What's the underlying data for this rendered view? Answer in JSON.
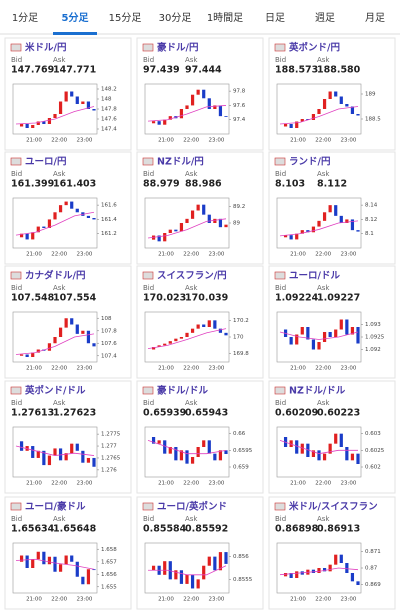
{
  "tabs": [
    "1分足",
    "5分足",
    "15分足",
    "30分足",
    "1時間足",
    "日足",
    "週足",
    "月足"
  ],
  "selected_tab": 1,
  "labels": {
    "bid": "Bid",
    "ask": "Ask"
  },
  "time_labels": [
    "21:00",
    "22:00",
    "23:00"
  ],
  "cards": [
    {
      "name": "米ドル/円",
      "bid": 147.769,
      "ask": 147.771,
      "ylim": [
        147.3,
        148.3
      ],
      "yticks": [
        148.2,
        148,
        147.8,
        147.6,
        147.4
      ],
      "closes": [
        147.45,
        147.5,
        147.42,
        147.48,
        147.55,
        147.5,
        147.62,
        147.7,
        147.95,
        148.15,
        148.05,
        147.9,
        147.95,
        147.8,
        147.77
      ],
      "ma": [
        147.5,
        147.52,
        147.6,
        147.75,
        147.85
      ]
    },
    {
      "name": "豪ドル/円",
      "bid": 97.439,
      "ask": 97.444,
      "ylim": [
        97.2,
        97.9
      ],
      "yticks": [
        97.8,
        97.6,
        97.4
      ],
      "closes": [
        97.35,
        97.38,
        97.33,
        97.4,
        97.45,
        97.42,
        97.55,
        97.6,
        97.75,
        97.82,
        97.7,
        97.55,
        97.6,
        97.45,
        97.44
      ],
      "ma": [
        97.38,
        97.4,
        97.48,
        97.58,
        97.6
      ]
    },
    {
      "name": "英ポンド/円",
      "bid": 188.573,
      "ask": {
        "value": 188.58,
        "label": "188.580"
      },
      "ylim": [
        188.2,
        189.2
      ],
      "yticks": [
        189,
        188.5
      ],
      "closes": [
        188.35,
        188.4,
        188.32,
        188.45,
        188.5,
        188.48,
        188.6,
        188.7,
        188.9,
        189.05,
        188.95,
        188.8,
        188.75,
        188.6,
        188.57
      ],
      "ma": [
        188.4,
        188.43,
        188.55,
        188.7,
        188.75
      ]
    },
    {
      "name": "ユーロ/円",
      "bid": 161.399,
      "ask": 161.403,
      "ylim": [
        161.0,
        161.7
      ],
      "yticks": [
        161.6,
        161.4,
        161.2
      ],
      "closes": [
        161.15,
        161.2,
        161.12,
        161.22,
        161.3,
        161.28,
        161.4,
        161.5,
        161.6,
        161.65,
        161.55,
        161.5,
        161.45,
        161.42,
        161.4
      ],
      "ma": [
        161.18,
        161.22,
        161.32,
        161.45,
        161.5
      ]
    },
    {
      "name": "NZドル/円",
      "bid": 88.979,
      "ask": 88.986,
      "ylim": [
        88.7,
        89.3
      ],
      "yticks": [
        89.2,
        89
      ],
      "closes": [
        88.8,
        88.85,
        88.78,
        88.88,
        88.92,
        88.9,
        89.0,
        89.05,
        89.15,
        89.22,
        89.1,
        89.0,
        89.05,
        88.95,
        88.98
      ],
      "ma": [
        88.82,
        88.85,
        88.92,
        89.02,
        89.05
      ]
    },
    {
      "name": "ランド/円",
      "bid": 8.103,
      "ask": 8.112,
      "ylim": [
        8.08,
        8.15
      ],
      "yticks": [
        8.14,
        8.12,
        8.1
      ],
      "closes": [
        8.095,
        8.098,
        8.092,
        8.1,
        8.105,
        8.102,
        8.11,
        8.118,
        8.13,
        8.14,
        8.125,
        8.115,
        8.12,
        8.105,
        8.103
      ],
      "ma": [
        8.097,
        8.1,
        8.106,
        8.115,
        8.118
      ]
    },
    {
      "name": "カナダドル/円",
      "bid": 107.548,
      "ask": 107.554,
      "ylim": [
        107.3,
        108.1
      ],
      "yticks": [
        108,
        107.8,
        107.6,
        107.4
      ],
      "closes": [
        107.4,
        107.42,
        107.38,
        107.45,
        107.5,
        107.48,
        107.6,
        107.7,
        107.85,
        108.0,
        107.9,
        107.75,
        107.8,
        107.6,
        107.55
      ],
      "ma": [
        107.42,
        107.45,
        107.55,
        107.7,
        107.75
      ]
    },
    {
      "name": "スイスフラン/円",
      "bid": 170.023,
      "ask": 170.039,
      "ylim": [
        169.7,
        170.3
      ],
      "yticks": [
        170.2,
        170,
        169.8
      ],
      "closes": [
        169.85,
        169.88,
        169.9,
        169.92,
        169.95,
        169.98,
        170.0,
        170.05,
        170.1,
        170.15,
        170.12,
        170.2,
        170.1,
        170.05,
        170.02
      ],
      "ma": [
        169.86,
        169.9,
        169.97,
        170.05,
        170.1
      ]
    },
    {
      "name": "ユーロ/ドル",
      "bid": 1.09224,
      "ask": 1.09227,
      "ylim": [
        1.0915,
        1.0935
      ],
      "yticks": [
        1.093,
        1.0925,
        1.092
      ],
      "closes": [
        1.0928,
        1.0925,
        1.0922,
        1.0926,
        1.0929,
        1.0924,
        1.092,
        1.0923,
        1.0927,
        1.0925,
        1.0928,
        1.0932,
        1.0926,
        1.0929,
        1.09224
      ],
      "ma": [
        1.0927,
        1.0925,
        1.0924,
        1.0925,
        1.0927
      ]
    },
    {
      "name": "英ポンド/ドル",
      "bid": 1.27613,
      "ask": 1.27623,
      "ylim": [
        1.2757,
        1.2778
      ],
      "yticks": [
        1.2775,
        1.277,
        1.2765,
        1.276
      ],
      "closes": [
        1.2772,
        1.2768,
        1.277,
        1.2765,
        1.2768,
        1.2762,
        1.2766,
        1.2769,
        1.2764,
        1.2767,
        1.2771,
        1.2768,
        1.2763,
        1.2765,
        1.27613
      ],
      "ma": [
        1.277,
        1.2768,
        1.2766,
        1.2767,
        1.2766
      ]
    },
    {
      "name": "豪ドル/ドル",
      "bid": 0.65939,
      "ask": 0.65943,
      "ylim": [
        0.6587,
        0.6602
      ],
      "yticks": [
        0.66,
        0.6595,
        0.659
      ],
      "closes": [
        0.6599,
        0.6597,
        0.6598,
        0.6594,
        0.6596,
        0.6592,
        0.6595,
        0.6591,
        0.6593,
        0.6596,
        0.6598,
        0.6594,
        0.6592,
        0.6595,
        0.65939
      ],
      "ma": [
        0.6598,
        0.6596,
        0.6594,
        0.6594,
        0.6595
      ]
    },
    {
      "name": "NZドル/ドル",
      "bid": 0.60209,
      "ask": 0.60223,
      "ylim": [
        0.6017,
        0.6032
      ],
      "yticks": [
        0.603,
        0.6025,
        0.602
      ],
      "closes": [
        0.6029,
        0.6026,
        0.6028,
        0.6024,
        0.6027,
        0.6023,
        0.6025,
        0.6022,
        0.6024,
        0.6027,
        0.603,
        0.6026,
        0.6022,
        0.6024,
        0.60209
      ],
      "ma": [
        0.6028,
        0.6026,
        0.6024,
        0.6025,
        0.6025
      ]
    },
    {
      "name": "ユーロ/豪ドル",
      "bid": 1.65634,
      "ask": 1.65648,
      "ylim": [
        1.6545,
        1.6585
      ],
      "yticks": [
        1.658,
        1.657,
        1.656,
        1.655
      ],
      "closes": [
        1.657,
        1.6575,
        1.6565,
        1.6572,
        1.6578,
        1.6568,
        1.6574,
        1.6562,
        1.6568,
        1.6575,
        1.657,
        1.6558,
        1.6552,
        1.6564,
        1.65634
      ],
      "ma": [
        1.6571,
        1.6572,
        1.6569,
        1.6567,
        1.6564
      ]
    },
    {
      "name": "ユーロ/英ポンド",
      "bid": 0.85584,
      "ask": 0.85592,
      "ylim": [
        0.8552,
        0.8563
      ],
      "yticks": [
        0.856,
        0.8555
      ],
      "closes": [
        0.8557,
        0.8558,
        0.8556,
        0.8559,
        0.8555,
        0.8557,
        0.8554,
        0.8556,
        0.8553,
        0.8555,
        0.8558,
        0.856,
        0.8557,
        0.8561,
        0.85584
      ],
      "ma": [
        0.8557,
        0.8557,
        0.8556,
        0.8556,
        0.8558
      ]
    },
    {
      "name": "米ドル/スイスフラン",
      "bid": 0.86898,
      "ask": 0.86913,
      "ylim": [
        0.8685,
        0.8715
      ],
      "yticks": [
        0.871,
        0.87,
        0.869
      ],
      "closes": [
        0.8695,
        0.8697,
        0.8694,
        0.8698,
        0.8696,
        0.8699,
        0.8697,
        0.87,
        0.8698,
        0.8702,
        0.8708,
        0.8703,
        0.8697,
        0.8692,
        0.86898
      ],
      "ma": [
        0.8696,
        0.8697,
        0.8698,
        0.87,
        0.8699
      ]
    }
  ]
}
